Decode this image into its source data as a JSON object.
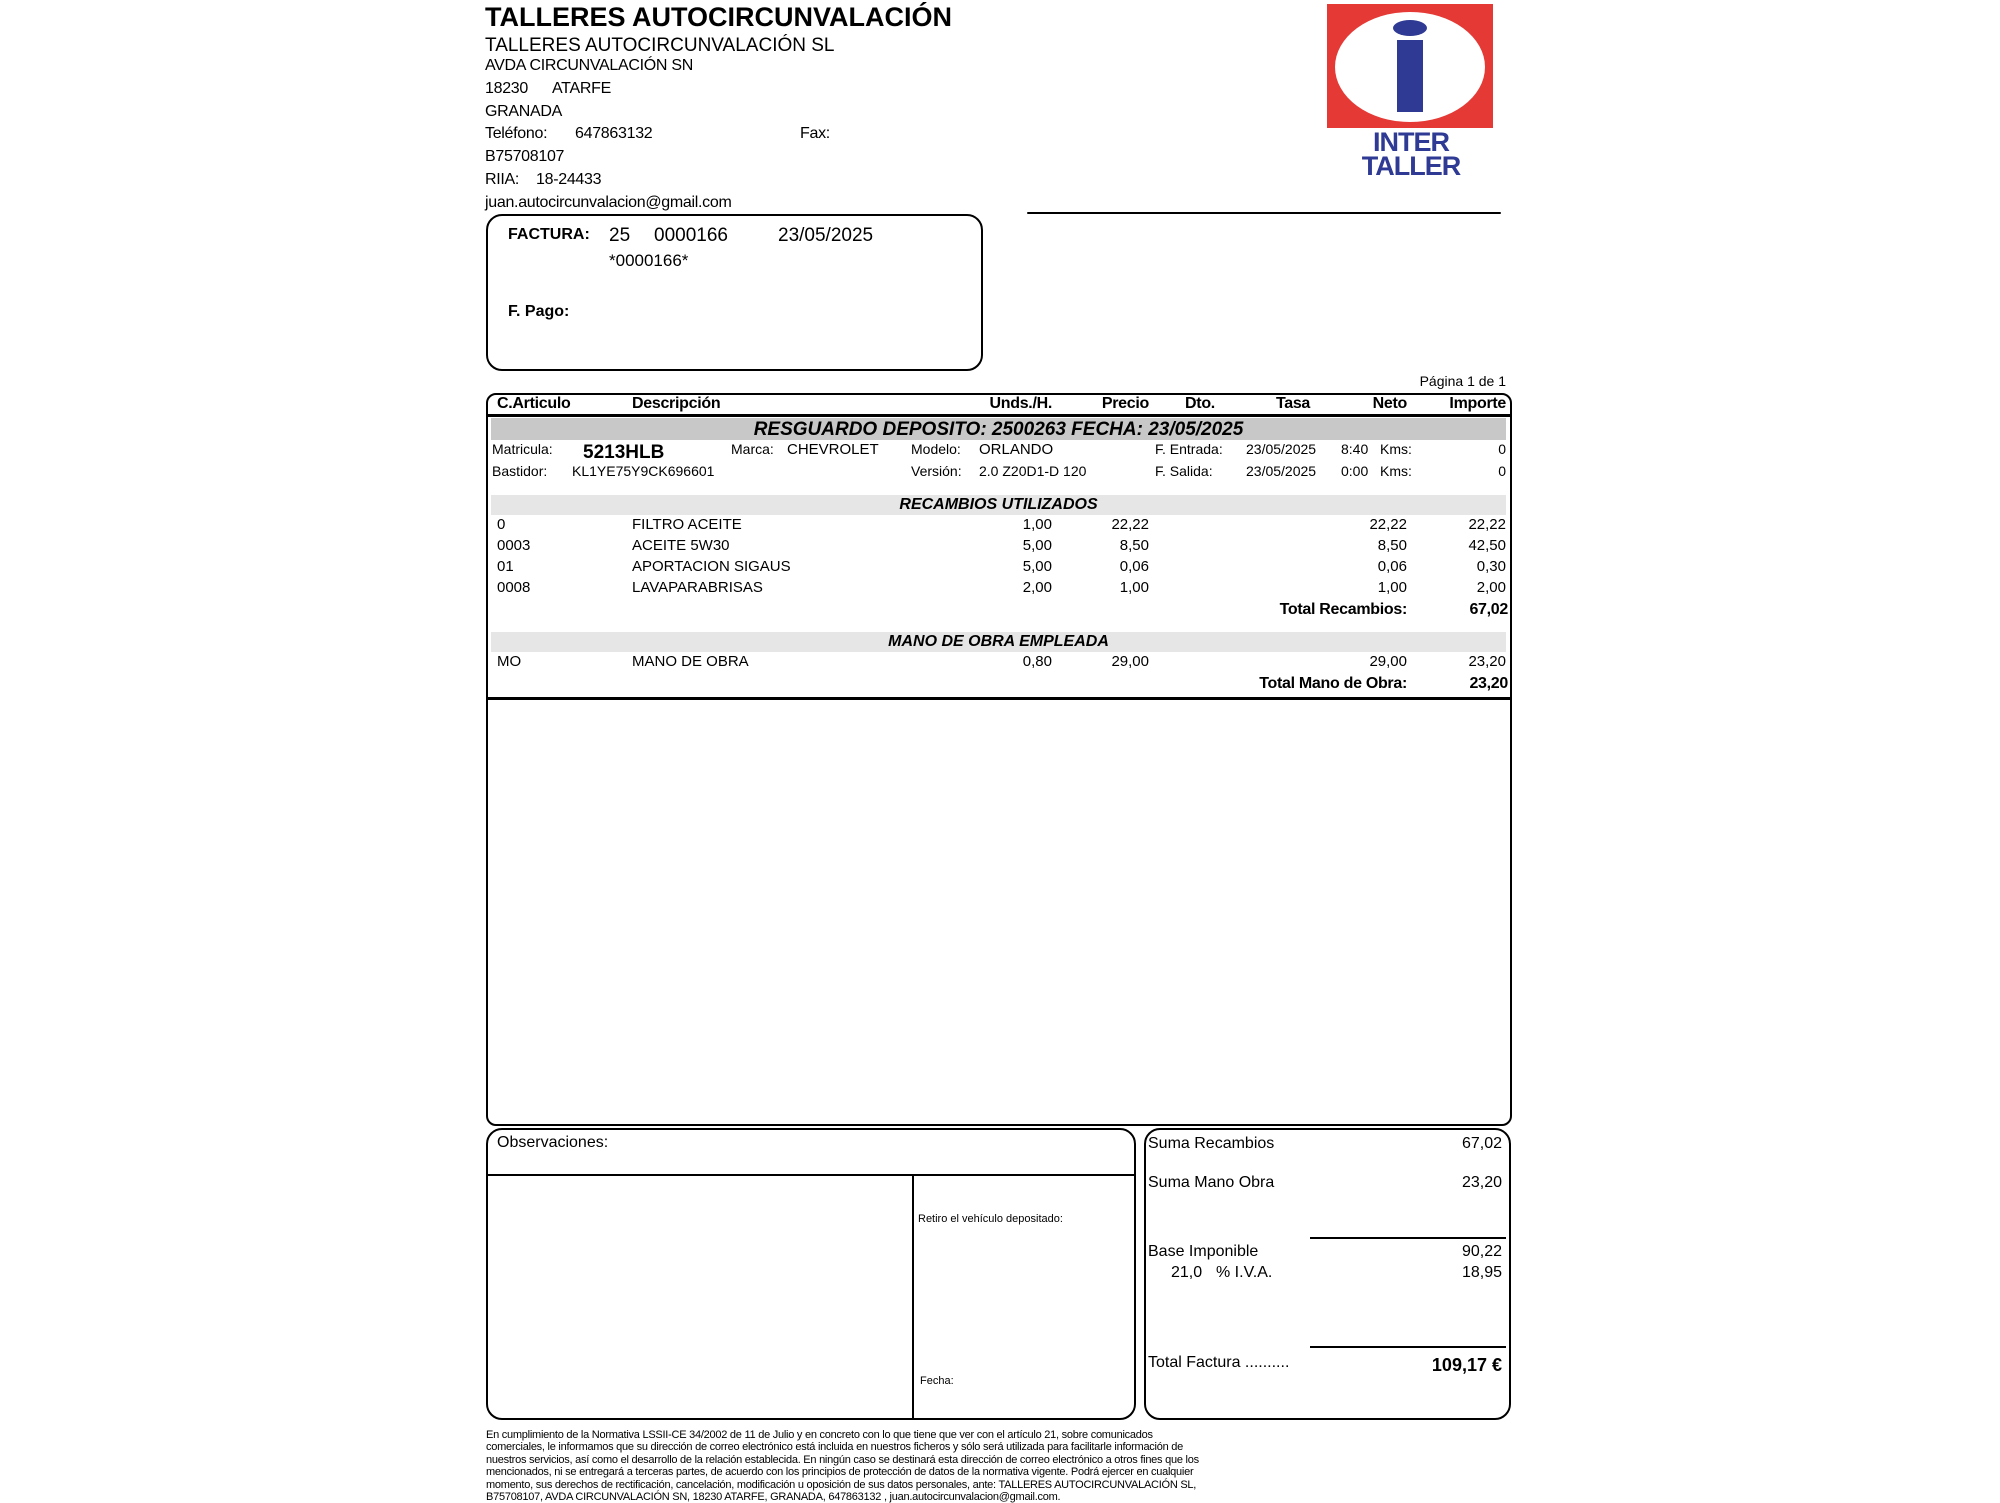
{
  "company": {
    "title": "TALLERES AUTOCIRCUNVALACIÓN",
    "name": "TALLERES AUTOCIRCUNVALACIÓN SL",
    "address": "AVDA CIRCUNVALACIÓN SN",
    "postal": "18230",
    "city": "ATARFE",
    "province": "GRANADA",
    "phone_label": "Teléfono:",
    "phone": "647863132",
    "fax_label": "Fax:",
    "cif": "B75708107",
    "riia_label": "RIIA:",
    "riia": "18-24433",
    "email": "juan.autocircunvalacion@gmail.com"
  },
  "logo": {
    "text1": "INTER",
    "text2": "TALLER",
    "colors": {
      "red": "#e53935",
      "blue": "#2e3a93"
    }
  },
  "invoice": {
    "label": "FACTURA:",
    "series": "25",
    "number": "0000166",
    "date": "23/05/2025",
    "barcode": "*0000166*",
    "payment_label": "F. Pago:",
    "page": "Página 1 de 1"
  },
  "table": {
    "headers": [
      "C.Articulo",
      "Descripción",
      "Unds./H.",
      "Precio",
      "Dto.",
      "Tasa",
      "Neto",
      "Importe"
    ],
    "deposit": "RESGUARDO DEPOSITO: 2500263 FECHA: 23/05/2025",
    "vehicle": {
      "plate_label": "Matricula:",
      "plate": "5213HLB",
      "brand_label": "Marca:",
      "brand": "CHEVROLET",
      "model_label": "Modelo:",
      "model": "ORLANDO",
      "in_label": "F. Entrada:",
      "in_date": "23/05/2025",
      "in_time": "8:40",
      "kms_label": "Kms:",
      "in_kms": "0",
      "vin_label": "Bastidor:",
      "vin": "KL1YE75Y9CK696601",
      "version_label": "Versión:",
      "version": "2.0 Z20D1-D 120",
      "out_label": "F. Salida:",
      "out_date": "23/05/2025",
      "out_time": "0:00",
      "out_kms": "0"
    },
    "parts_title": "RECAMBIOS UTILIZADOS",
    "parts": [
      {
        "code": "0",
        "desc": "FILTRO ACEITE",
        "units": "1,00",
        "price": "22,22",
        "net": "22,22",
        "amount": "22,22"
      },
      {
        "code": "0003",
        "desc": "ACEITE 5W30",
        "units": "5,00",
        "price": "8,50",
        "net": "8,50",
        "amount": "42,50"
      },
      {
        "code": "01",
        "desc": "APORTACION SIGAUS",
        "units": "5,00",
        "price": "0,06",
        "net": "0,06",
        "amount": "0,30"
      },
      {
        "code": "0008",
        "desc": "LAVAPARABRISAS",
        "units": "2,00",
        "price": "1,00",
        "net": "1,00",
        "amount": "2,00"
      }
    ],
    "parts_total_label": "Total Recambios:",
    "parts_total": "67,02",
    "labor_title": "MANO DE OBRA EMPLEADA",
    "labor": [
      {
        "code": "MO",
        "desc": "MANO DE OBRA",
        "units": "0,80",
        "price": "29,00",
        "net": "29,00",
        "amount": "23,20"
      }
    ],
    "labor_total_label": "Total Mano de Obra:",
    "labor_total": "23,20"
  },
  "observations": {
    "label": "Observaciones:",
    "pickup": "Retiro el vehículo depositado:",
    "date_label": "Fecha:"
  },
  "summary": {
    "parts_label": "Suma Recambios",
    "parts": "67,02",
    "labor_label": "Suma Mano Obra",
    "labor": "23,20",
    "base_label": "Base Imponible",
    "base": "90,22",
    "vat_rate": "21,0",
    "vat_label": "% I.V.A.",
    "vat": "18,95",
    "total_label": "Total Factura ..........",
    "total": "109,17 €"
  },
  "footer": [
    "En cumplimiento de la Normativa LSSII-CE 34/2002 de 11 de Julio y en concreto con lo que tiene que ver con el artículo 21, sobre comunicados",
    "comerciales, le informamos que su dirección de correo electrónico está incluida en nuestros ficheros y sólo será utilizada para facilitarle información de",
    "nuestros servicios, así como el desarrollo de la relación establecida. En ningún caso se destinará esta dirección de correo electrónico a otros fines que los",
    "mencionados, ni se entregará a terceras partes, de acuerdo con los principios de protección de datos de la normativa vigente. Podrá ejercer en cualquier",
    "momento, sus derechos de rectificación, cancelación, modificación u oposición de sus datos personales, ante:  TALLERES AUTOCIRCUNVALACIÓN SL,",
    "B75708107, AVDA CIRCUNVALACIÓN SN, 18230 ATARFE, GRANADA, 647863132 , juan.autocircunvalacion@gmail.com."
  ]
}
